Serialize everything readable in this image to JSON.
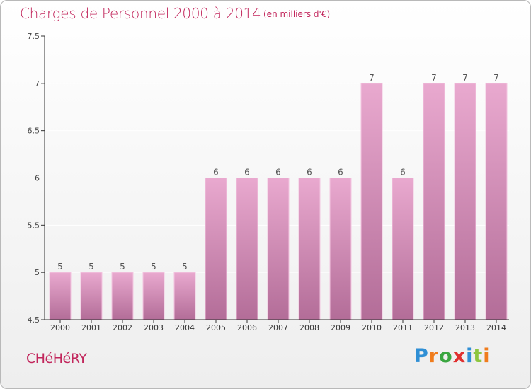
{
  "title": "Charges de Personnel 2000 à 2014",
  "subtitle": "(en milliers d'€)",
  "commune": "CHéHéRY",
  "brand": {
    "text": "Proxiti",
    "letter_colors": [
      "#2f8fd5",
      "#f07c1c",
      "#3aa640",
      "#e03030",
      "#2f8fd5",
      "#8dc63f",
      "#f07c1c"
    ]
  },
  "colors": {
    "title": "#c2265c",
    "bar_top": "#e9a9cf",
    "bar_bottom": "#b36d98",
    "axis": "#333333",
    "grid": "#ffffff"
  },
  "chart_data": {
    "type": "bar",
    "title": "Charges de Personnel 2000 à 2014",
    "subtitle": "(en milliers d'€)",
    "categories": [
      "2000",
      "2001",
      "2002",
      "2003",
      "2004",
      "2005",
      "2006",
      "2007",
      "2008",
      "2009",
      "2010",
      "2011",
      "2012",
      "2013",
      "2014"
    ],
    "values": [
      5,
      5,
      5,
      5,
      5,
      6,
      6,
      6,
      6,
      6,
      7,
      6,
      7,
      7,
      7
    ],
    "data_labels": [
      "5",
      "5",
      "5",
      "5",
      "5",
      "6",
      "6",
      "6",
      "6",
      "6",
      "7",
      "6",
      "7",
      "7",
      "7"
    ],
    "ylim": [
      4.5,
      7.5
    ],
    "yticks": [
      4.5,
      5,
      5.5,
      6,
      6.5,
      7,
      7.5
    ],
    "ytick_labels": [
      "4.5",
      "5",
      "5.5",
      "6",
      "6.5",
      "7",
      "7.5"
    ],
    "xlabel": "",
    "ylabel": "",
    "grid": true,
    "legend": "none"
  }
}
